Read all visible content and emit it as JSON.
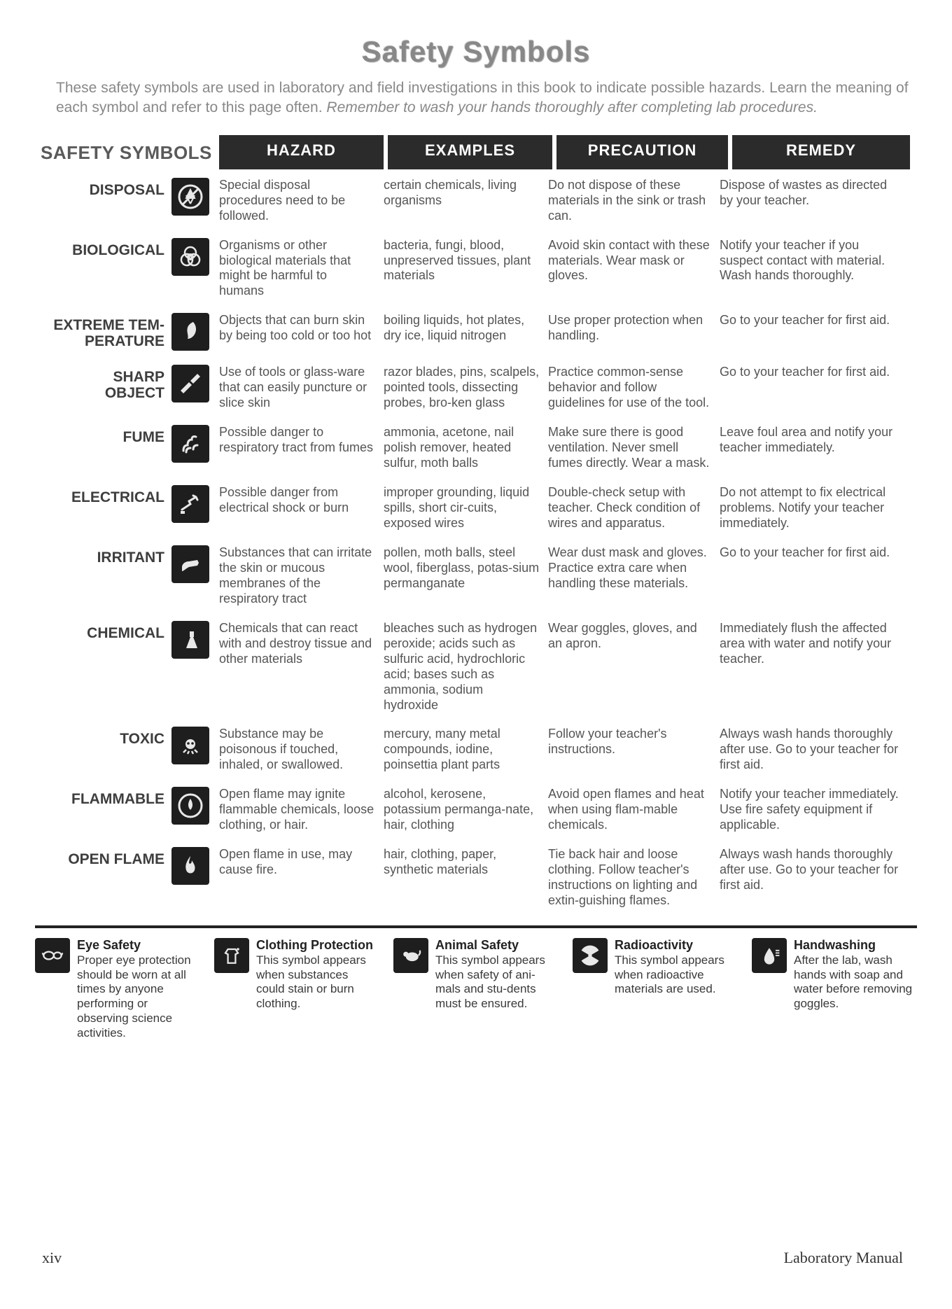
{
  "title": "Safety Symbols",
  "intro_a": "These safety symbols are used in laboratory and field investigations in this book to indicate possible hazards. Learn the meaning of each symbol and refer to this page often. ",
  "intro_b": "Remember to wash your hands thoroughly after completing lab procedures.",
  "headers": {
    "label": "SAFETY SYMBOLS",
    "hazard": "HAZARD",
    "examples": "EXAMPLES",
    "precaution": "PRECAUTION",
    "remedy": "REMEDY"
  },
  "rows": [
    {
      "label": "DISPOSAL",
      "hazard": "Special disposal procedures need to be followed.",
      "examples": "certain chemicals, living organisms",
      "precaution": "Do not dispose of these materials in the sink or trash can.",
      "remedy": "Dispose of wastes as directed by your teacher."
    },
    {
      "label": "BIOLOGICAL",
      "hazard": "Organisms or other biological materials that might be harmful to humans",
      "examples": "bacteria, fungi, blood, unpreserved tissues, plant materials",
      "precaution": "Avoid skin contact with these materials. Wear mask or gloves.",
      "remedy": "Notify your teacher if you suspect contact with material. Wash hands thoroughly."
    },
    {
      "label": "EXTREME TEM-\nPERATURE",
      "hazard": "Objects that can burn skin by being too cold or too hot",
      "examples": "boiling liquids, hot plates, dry ice, liquid nitrogen",
      "precaution": "Use proper protection when handling.",
      "remedy": "Go to your teacher for first aid."
    },
    {
      "label": "SHARP\nOBJECT",
      "hazard": "Use of tools or glass-ware that can easily puncture or slice skin",
      "examples": "razor blades, pins, scalpels, pointed tools, dissecting probes, bro-ken glass",
      "precaution": "Practice common-sense behavior and follow guidelines for use of the tool.",
      "remedy": "Go to your teacher for first aid."
    },
    {
      "label": "FUME",
      "hazard": "Possible danger to respiratory tract from fumes",
      "examples": "ammonia, acetone, nail polish remover, heated sulfur, moth balls",
      "precaution": "Make sure there is good ventilation. Never smell fumes directly. Wear a mask.",
      "remedy": "Leave foul area and notify your teacher immediately."
    },
    {
      "label": "ELECTRICAL",
      "hazard": "Possible danger from electrical shock or burn",
      "examples": "improper grounding, liquid spills, short cir-cuits, exposed wires",
      "precaution": "Double-check setup with teacher. Check condition of wires and apparatus.",
      "remedy": "Do not attempt to fix electrical problems. Notify your teacher immediately."
    },
    {
      "label": "IRRITANT",
      "hazard": "Substances that can irritate the skin or mucous membranes of the respiratory tract",
      "examples": "pollen, moth balls, steel wool, fiberglass, potas-sium permanganate",
      "precaution": "Wear dust mask and gloves. Practice extra care when handling these materials.",
      "remedy": "Go to your teacher for first aid."
    },
    {
      "label": "CHEMICAL",
      "hazard": "Chemicals that can react with and destroy tissue and other materials",
      "examples": "bleaches such as hydrogen peroxide; acids such as sulfuric acid, hydrochloric acid; bases such as ammonia, sodium hydroxide",
      "precaution": "Wear goggles, gloves, and an apron.",
      "remedy": "Immediately flush the affected area with water and notify your teacher."
    },
    {
      "label": "TOXIC",
      "hazard": "Substance may be poisonous if touched, inhaled, or swallowed.",
      "examples": "mercury, many metal compounds, iodine, poinsettia plant parts",
      "precaution": "Follow your teacher's instructions.",
      "remedy": "Always wash hands thoroughly after use. Go to your teacher for first aid."
    },
    {
      "label": "FLAMMABLE",
      "hazard": "Open flame may ignite flammable chemicals, loose clothing, or hair.",
      "examples": "alcohol, kerosene, potassium permanga-nate, hair, clothing",
      "precaution": "Avoid open flames and heat when using flam-mable chemicals.",
      "remedy": "Notify your teacher immediately. Use fire safety equipment if applicable."
    },
    {
      "label": "OPEN FLAME",
      "hazard": "Open flame in use, may cause fire.",
      "examples": "hair, clothing, paper, synthetic materials",
      "precaution": "Tie back hair and loose clothing. Follow teacher's instructions on lighting and extin-guishing flames.",
      "remedy": "Always wash hands thoroughly after use. Go to your teacher for first aid."
    }
  ],
  "bottom": [
    {
      "title": "Eye Safety",
      "text": "Proper eye protection should be worn at all times by anyone performing or observing science activities."
    },
    {
      "title": "Clothing Protection",
      "text": "This symbol appears when substances could stain or burn clothing."
    },
    {
      "title": "Animal Safety",
      "text": "This symbol appears when safety of ani-mals and stu-dents must be ensured."
    },
    {
      "title": "Radioactivity",
      "text": "This symbol appears when radioactive materials are used."
    },
    {
      "title": "Handwashing",
      "text": "After the lab, wash hands with soap and water before removing goggles."
    }
  ],
  "footer": {
    "page": "xiv",
    "source": "Laboratory Manual"
  },
  "icon_color": "#e8e8e8",
  "icon_bg": "#1e1e1e"
}
